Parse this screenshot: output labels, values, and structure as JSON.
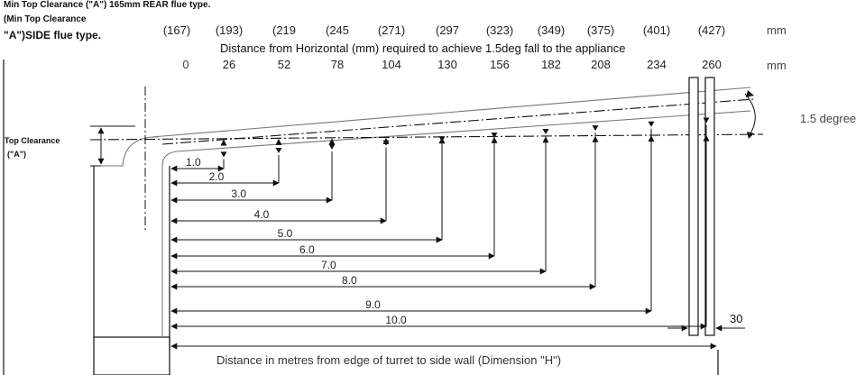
{
  "header": {
    "rear_line": "Min Top Clearance (\"A\") 165mm REAR flue  type.",
    "side_line1": "(Min Top Clearance",
    "side_line2": "\"A\")SIDE flue type.",
    "caption": "Distance from Horizontal (mm) required to achieve 1.5deg fall to the appliance",
    "unit": "mm"
  },
  "side_values": [
    "(167)",
    "(193)",
    "(219",
    "(245",
    "(271)",
    "(297",
    "(323)",
    "(349)",
    "(375)",
    "(401)",
    "(427)"
  ],
  "rear_values": [
    "0",
    "26",
    "52",
    "78",
    "104",
    "130",
    "156",
    "182",
    "208",
    "234",
    "260"
  ],
  "distances": [
    "1.0",
    "2.0",
    "3.0",
    "4.0",
    "5.0",
    "6.0",
    "7.0",
    "8.0",
    "9.0",
    "10.0"
  ],
  "labels": {
    "angle": "1.5 degree",
    "top_clearance_line1": "Top Clearance",
    "top_clearance_line2": "(\"A\")",
    "wall_gap": "30",
    "bottom_caption": "Distance in metres from edge of turret to side wall (Dimension \"H\")"
  }
}
